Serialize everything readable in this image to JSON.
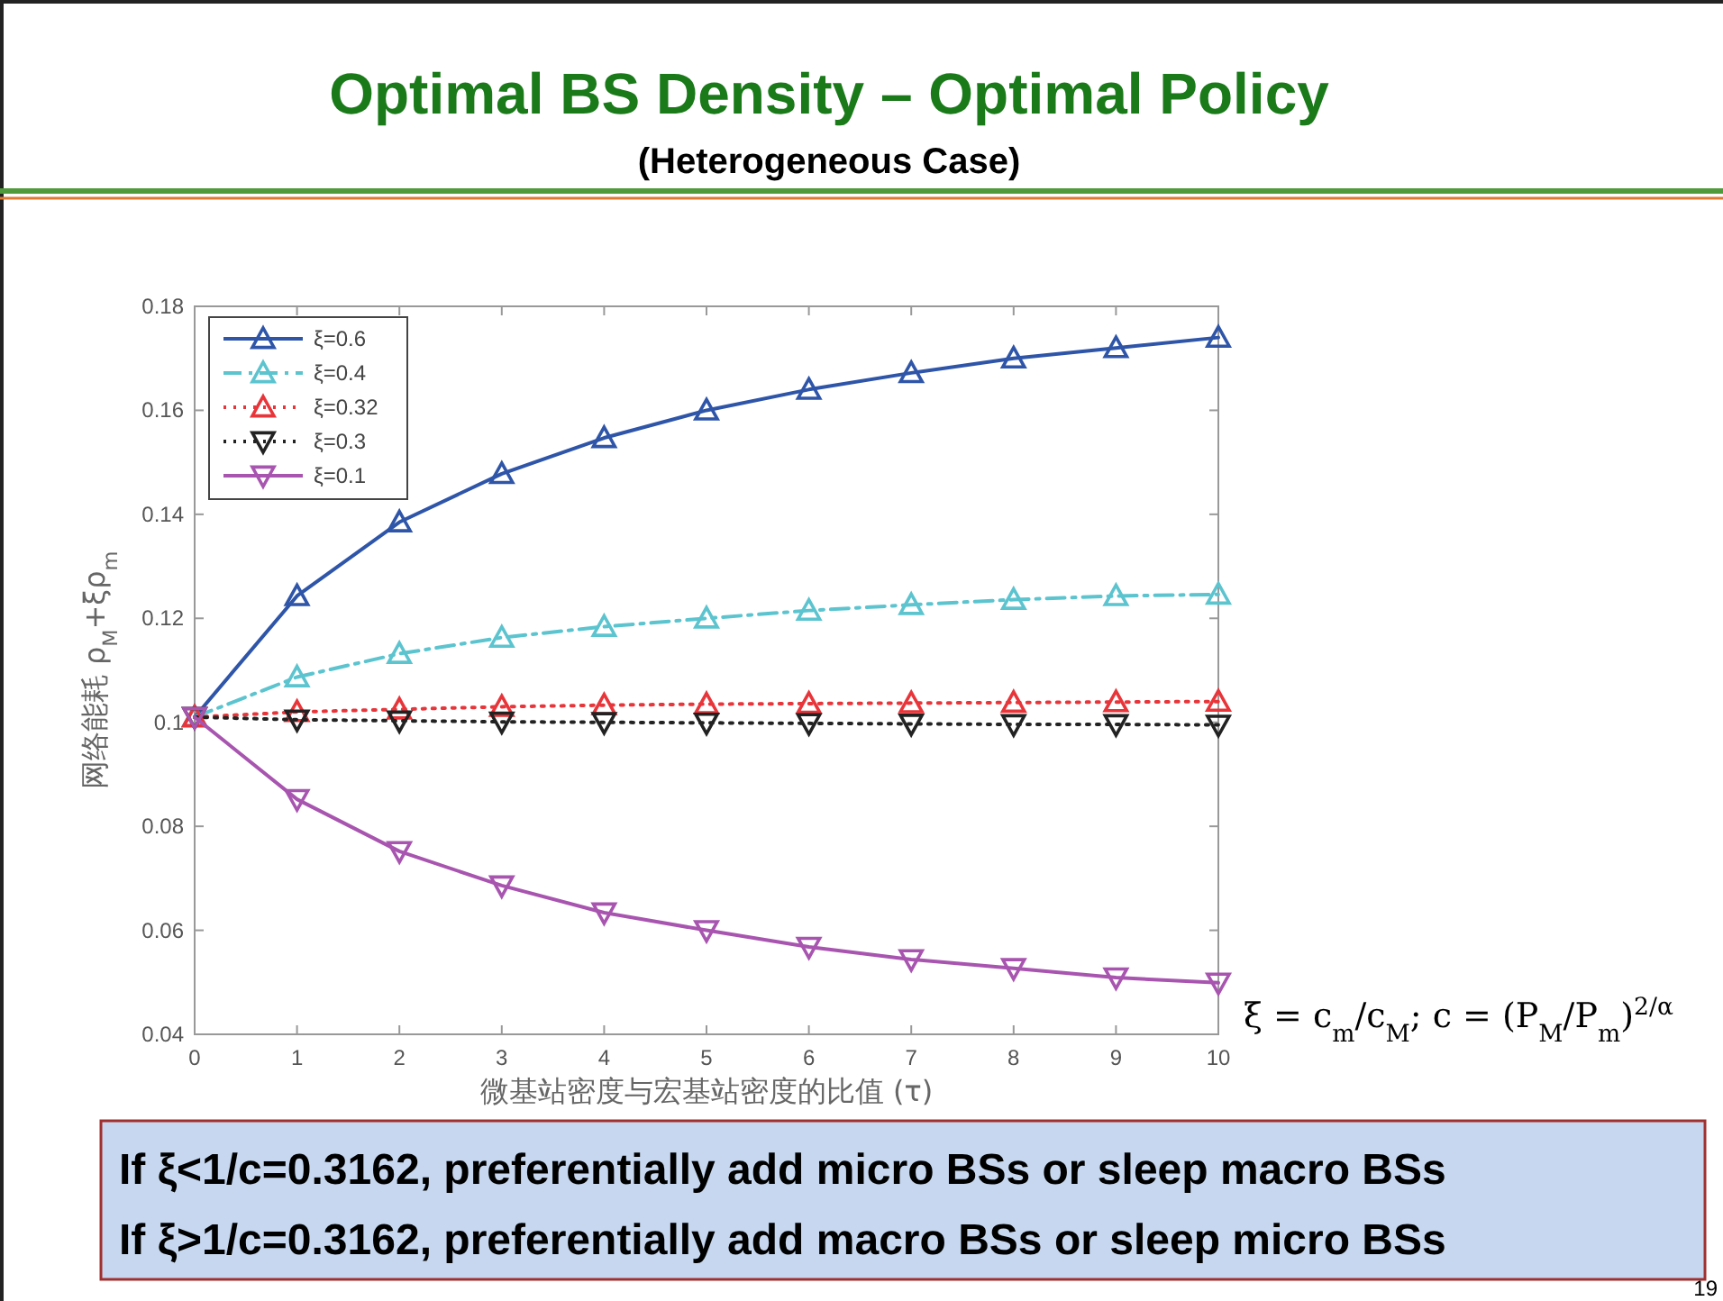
{
  "chart_data": {
    "type": "line",
    "title": "Optimal BS Density – Optimal Policy",
    "subtitle": "(Heterogeneous Case)",
    "xlabel": "微基站密度与宏基站密度的比值 (τ)",
    "ylabel": "网络能耗  ρ$_{M}$+ξρ$_{m}$",
    "x": [
      0,
      1,
      2,
      3,
      4,
      5,
      6,
      7,
      8,
      9,
      10
    ],
    "xlim": [
      0,
      10
    ],
    "xticks": [
      0,
      1,
      2,
      3,
      4,
      5,
      6,
      7,
      8,
      9,
      10
    ],
    "ylim": [
      0.04,
      0.18
    ],
    "yticks": [
      0.04,
      0.06,
      0.08,
      0.1,
      0.12,
      0.14,
      0.16,
      0.18
    ],
    "grid": false,
    "legend": "top left",
    "series": [
      {
        "name": "ξ=0.6",
        "color": "#2e55a8",
        "marker": "triangle",
        "line_style": "solid",
        "values": [
          0.101,
          0.1243,
          0.1385,
          0.1478,
          0.1547,
          0.16,
          0.164,
          0.1672,
          0.17,
          0.172,
          0.174
        ]
      },
      {
        "name": "ξ=0.4",
        "color": "#5cc4cf",
        "marker": "triangle",
        "line_style": "dashed",
        "values": [
          0.101,
          0.1087,
          0.1132,
          0.1163,
          0.1184,
          0.12,
          0.1215,
          0.1226,
          0.1236,
          0.1243,
          0.1246
        ]
      },
      {
        "name": "ξ=0.32",
        "color": "#e8353a",
        "marker": "triangle",
        "line_style": "dotted",
        "values": [
          0.101,
          0.102,
          0.1025,
          0.103,
          0.1033,
          0.1035,
          0.1036,
          0.1037,
          0.1038,
          0.1039,
          0.104
        ]
      },
      {
        "name": "ξ=0.3",
        "color": "#222222",
        "marker": "triangle-down",
        "line_style": "dotted",
        "values": [
          0.101,
          0.1005,
          0.1003,
          0.1001,
          0.1,
          0.0999,
          0.0998,
          0.0997,
          0.0996,
          0.0996,
          0.0995
        ]
      },
      {
        "name": "ξ=0.1",
        "color": "#a855b0",
        "marker": "triangle-down",
        "line_style": "solid",
        "values": [
          0.101,
          0.0852,
          0.0752,
          0.0686,
          0.0634,
          0.06,
          0.0568,
          0.0544,
          0.0527,
          0.0509,
          0.0499
        ]
      }
    ],
    "annotations": [
      "ξ = c$_{m}$/c$_{M}$;  c = (P$_{M}$/P$_{m}$)$^{2/α}$",
      "If ξ<1/c=0.3162, preferentially add  micro BSs or sleep macro BSs",
      "If ξ>1/c=0.3162, preferentially add  macro BSs or sleep micro BSs",
      "19"
    ]
  }
}
